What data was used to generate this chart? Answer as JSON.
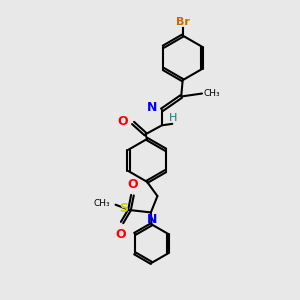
{
  "bg_color": "#e8e8e8",
  "bond_color": "#000000",
  "atom_colors": {
    "Br": "#cc6600",
    "O": "#ff0000",
    "N": "#0000ff",
    "S": "#cccc00",
    "H": "#008080",
    "C": "#000000"
  }
}
